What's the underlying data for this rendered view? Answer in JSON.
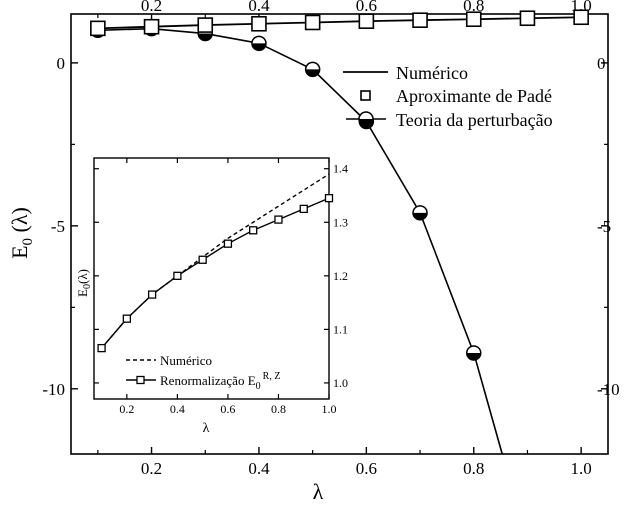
{
  "chart_data": [
    {
      "type": "line",
      "title": "",
      "xlabel": "λ",
      "ylabel": "E",
      "ylabel_sub": "0",
      "ylabel_suffix": " (λ)",
      "xlim": [
        0.05,
        1.05
      ],
      "ylim": [
        -12.0,
        1.5
      ],
      "xticks": [
        0.2,
        0.4,
        0.6,
        0.8,
        1.0
      ],
      "xtick_labels": [
        "0.2",
        "0.4",
        "0.6",
        "0.8",
        "1.0"
      ],
      "yticks": [
        0,
        -5,
        -10
      ],
      "ytick_labels": [
        "0",
        "-5",
        "-10"
      ],
      "grid": false,
      "legend_position": "top-right",
      "series": [
        {
          "name": "Numérico",
          "style": "solid line",
          "x": [
            0.1,
            0.2,
            0.3,
            0.4,
            0.5,
            0.6,
            0.7,
            0.8,
            0.9,
            1.0
          ],
          "y": [
            1.06,
            1.11,
            1.16,
            1.2,
            1.24,
            1.28,
            1.31,
            1.34,
            1.37,
            1.4
          ]
        },
        {
          "name": "Aproximante de Padé",
          "style": "open squares",
          "x": [
            0.1,
            0.2,
            0.3,
            0.4,
            0.5,
            0.6,
            0.7,
            0.8,
            0.9,
            1.0
          ],
          "y": [
            1.06,
            1.11,
            1.16,
            1.2,
            1.24,
            1.28,
            1.31,
            1.34,
            1.37,
            1.4
          ]
        },
        {
          "name": "Teoria da perturbação",
          "style": "half-filled circles with line",
          "x": [
            0.1,
            0.2,
            0.3,
            0.4,
            0.5,
            0.6,
            0.7,
            0.8
          ],
          "y": [
            1.0,
            1.05,
            0.9,
            0.6,
            -0.2,
            -1.8,
            -4.6,
            -8.9
          ],
          "curve_end": [
            0.853,
            -12.0
          ]
        }
      ]
    },
    {
      "type": "line",
      "title": "",
      "xlabel": "λ",
      "ylabel": "E",
      "ylabel_sub": "0",
      "ylabel_suffix": "(λ)",
      "xlim": [
        0.07,
        1.0
      ],
      "ylim": [
        0.97,
        1.42
      ],
      "xticks": [
        0.2,
        0.4,
        0.6,
        0.8,
        1.0
      ],
      "xtick_labels": [
        "0.2",
        "0.4",
        "0.6",
        "0.8",
        "1.0"
      ],
      "yticks": [
        1.0,
        1.1,
        1.2,
        1.3,
        1.4
      ],
      "ytick_labels": [
        "1.0",
        "1.1",
        "1.2",
        "1.3",
        "1.4"
      ],
      "grid": false,
      "legend_position": "bottom-left",
      "series": [
        {
          "name": "Numérico",
          "style": "dashed line",
          "x": [
            0.1,
            0.2,
            0.3,
            0.4,
            0.5,
            0.6,
            0.7,
            0.8,
            0.9,
            1.0
          ],
          "y": [
            1.065,
            1.12,
            1.165,
            1.2,
            1.235,
            1.27,
            1.3,
            1.33,
            1.36,
            1.39
          ]
        },
        {
          "name": "Renormalização E",
          "name_sub": "0",
          "name_sup": "R, Z",
          "style": "solid line with open squares",
          "x": [
            0.1,
            0.2,
            0.3,
            0.4,
            0.5,
            0.6,
            0.7,
            0.8,
            0.9,
            1.0
          ],
          "y": [
            1.065,
            1.12,
            1.165,
            1.2,
            1.23,
            1.26,
            1.285,
            1.305,
            1.325,
            1.345
          ]
        }
      ]
    }
  ]
}
